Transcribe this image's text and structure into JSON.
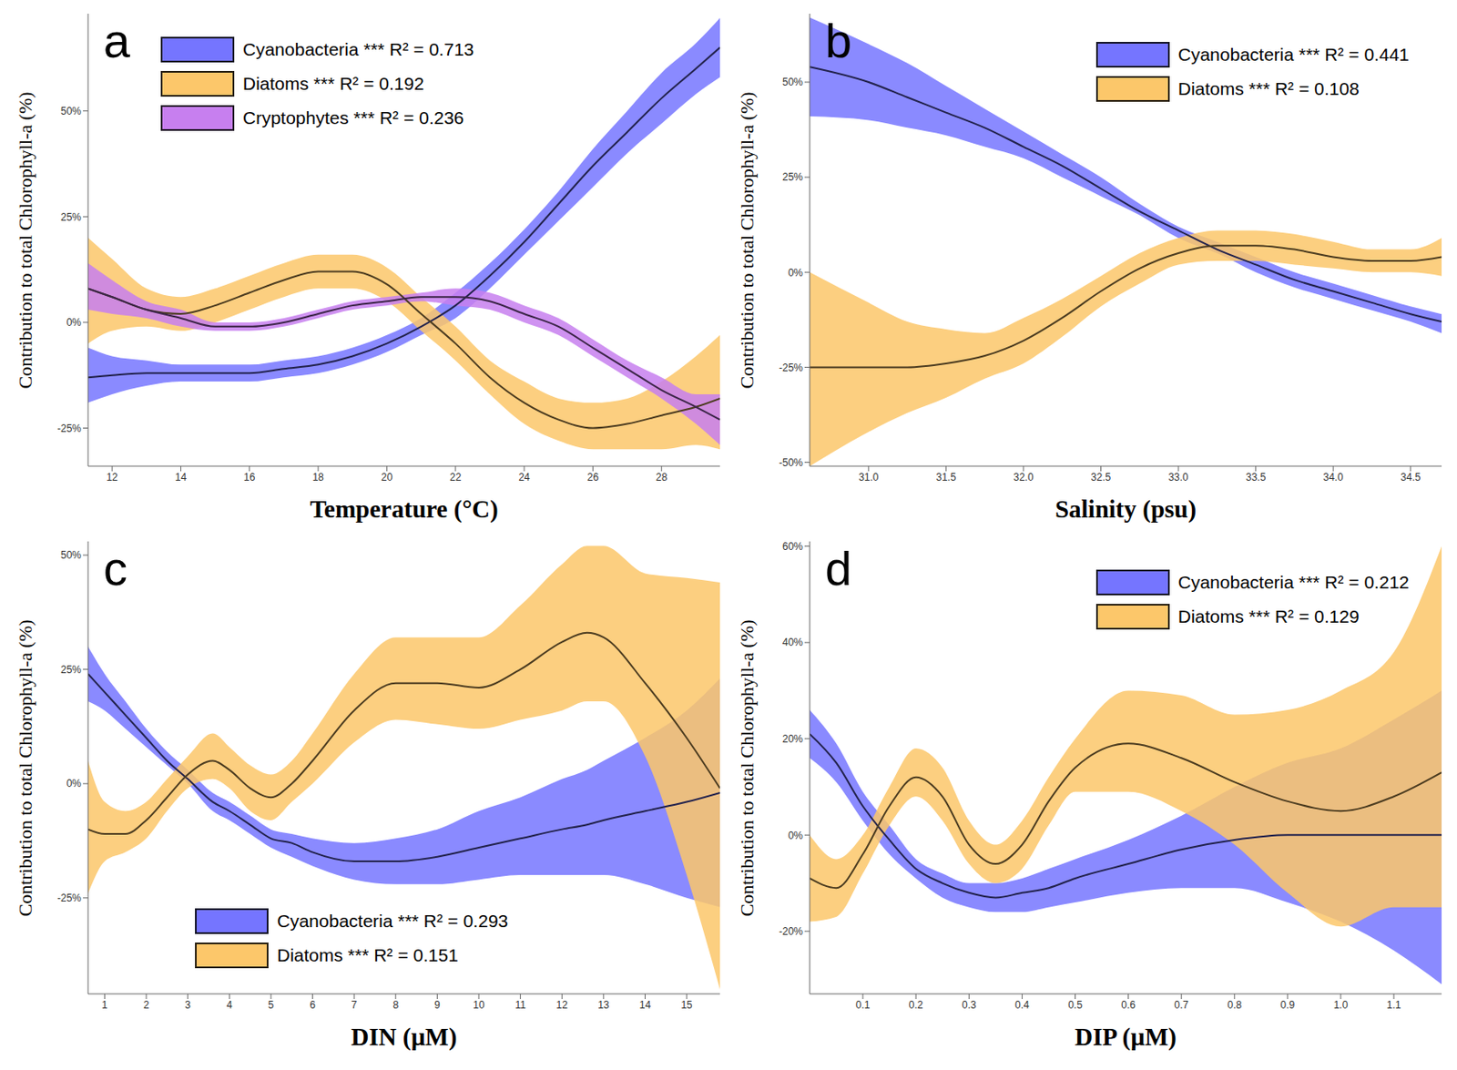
{
  "chart_data": [
    {
      "type": "line",
      "title": "a",
      "x_label": "Temperature (°C)",
      "y_label": "Contribution to total Chlorophyll-a (%)",
      "legend": "top",
      "xlim": [
        11.3,
        29.7
      ],
      "xticks": [
        12,
        14,
        16,
        18,
        20,
        22,
        24,
        26,
        28
      ],
      "ylim": [
        -34,
        73
      ],
      "yticks": [
        {
          "value": -25,
          "label": "-25%"
        },
        {
          "value": 0,
          "label": "0%"
        },
        {
          "value": 25,
          "label": "25%"
        },
        {
          "value": 50,
          "label": "50%"
        }
      ],
      "x": [
        11.3,
        12,
        13,
        14,
        15,
        16,
        17,
        18,
        19,
        20,
        21,
        22,
        23,
        24,
        25,
        26,
        27,
        28,
        29,
        29.7
      ],
      "series": [
        {
          "name": "Cyanobacteria *** R² = 0.713",
          "color": "#7575ff",
          "values": [
            -13,
            -12.5,
            -12,
            -12,
            -12,
            -12,
            -11,
            -10,
            -8,
            -5,
            -1,
            4,
            11,
            19,
            28,
            37,
            45,
            53,
            60,
            65
          ],
          "lower": [
            -19,
            -17,
            -15,
            -14,
            -14,
            -14,
            -13,
            -12,
            -10,
            -7,
            -3,
            1,
            8,
            16,
            24,
            32,
            40,
            47,
            54,
            58
          ],
          "upper": [
            -6,
            -8,
            -9,
            -10,
            -10,
            -10,
            -9,
            -8,
            -6,
            -3,
            1,
            7,
            14,
            22,
            31,
            41,
            50,
            59,
            66,
            72
          ]
        },
        {
          "name": "Diatoms *** R² = 0.192",
          "color": "#fcc76a",
          "values": [
            8,
            6,
            3,
            2,
            4,
            7,
            10,
            12,
            12,
            9,
            2,
            -5,
            -13,
            -19,
            -23,
            -25,
            -24,
            -22,
            -20,
            -18
          ],
          "lower": [
            -5,
            -2,
            -1,
            -2,
            0,
            3,
            6,
            8,
            8,
            5,
            -2,
            -9,
            -17,
            -24,
            -28,
            -30,
            -30,
            -30,
            -29,
            -30
          ],
          "upper": [
            20,
            15,
            8,
            6,
            8,
            11,
            14,
            16,
            16,
            13,
            6,
            -1,
            -9,
            -14,
            -18,
            -19,
            -18,
            -14,
            -8,
            -3
          ]
        },
        {
          "name": "Cryptophytes *** R² = 0.236",
          "color": "#c77fef",
          "values": [
            8,
            6,
            3,
            1,
            -1,
            -1,
            0,
            2,
            4,
            5,
            6,
            6,
            5,
            2,
            -1,
            -6,
            -11,
            -16,
            -20,
            -23
          ],
          "lower": [
            3,
            2,
            1,
            -1,
            -2,
            -2,
            -1,
            1,
            3,
            4,
            5,
            4,
            3,
            0,
            -3,
            -8,
            -13,
            -18,
            -24,
            -29
          ],
          "upper": [
            14,
            10,
            5,
            3,
            0,
            0,
            1,
            3,
            5,
            6,
            7,
            8,
            7,
            4,
            1,
            -4,
            -9,
            -13,
            -17,
            -17
          ]
        }
      ]
    },
    {
      "type": "line",
      "title": "b",
      "x_label": "Salinity (psu)",
      "y_label": "Contribution to total Chlorophyll-a (%)",
      "legend": "top right",
      "xlim": [
        30.62,
        34.7
      ],
      "xticks": [
        {
          "value": 31,
          "label": "31.0"
        },
        31.5,
        {
          "value": 32,
          "label": "32.0"
        },
        32.5,
        {
          "value": 33,
          "label": "33.0"
        },
        33.5,
        {
          "value": 34,
          "label": "34.0"
        },
        34.5
      ],
      "ylim": [
        -51,
        68
      ],
      "yticks": [
        {
          "value": -50,
          "label": "-50%"
        },
        {
          "value": -25,
          "label": "-25%"
        },
        {
          "value": 0,
          "label": "0%"
        },
        {
          "value": 25,
          "label": "25%"
        },
        {
          "value": 50,
          "label": "50%"
        }
      ],
      "x": [
        30.62,
        31,
        31.25,
        31.5,
        31.75,
        32,
        32.25,
        32.5,
        32.75,
        33,
        33.25,
        33.5,
        33.75,
        34,
        34.25,
        34.5,
        34.7
      ],
      "series": [
        {
          "name": "Cyanobacteria *** R² = 0.441",
          "color": "#7575ff",
          "values": [
            54,
            50,
            46,
            42,
            38,
            33,
            28,
            22,
            16,
            11,
            6,
            2,
            -2,
            -5,
            -8,
            -11,
            -13
          ],
          "lower": [
            41,
            40,
            38,
            36,
            33,
            30,
            25,
            20,
            15,
            9,
            5,
            0,
            -4,
            -7,
            -10,
            -13,
            -16
          ],
          "upper": [
            67,
            60,
            55,
            49,
            43,
            37,
            31,
            25,
            18,
            12,
            8,
            4,
            0,
            -3,
            -6,
            -9,
            -11
          ]
        },
        {
          "name": "Diatoms *** R² = 0.108",
          "color": "#fcc76a",
          "values": [
            -25,
            -25,
            -25,
            -24,
            -22,
            -18,
            -12,
            -5,
            1,
            5,
            7,
            7,
            6,
            4,
            3,
            3,
            4
          ],
          "lower": [
            -51,
            -42,
            -37,
            -33,
            -28,
            -24,
            -17,
            -9,
            -3,
            2,
            3,
            3,
            2,
            1,
            0,
            0,
            -1
          ],
          "upper": [
            0,
            -8,
            -13,
            -15,
            -16,
            -12,
            -7,
            -1,
            5,
            9,
            11,
            11,
            10,
            8,
            6,
            6,
            9
          ]
        }
      ]
    },
    {
      "type": "line",
      "title": "c",
      "x_label": "DIN (µM)",
      "y_label": "Contribution to total Chlorophyll-a (%)",
      "legend": "bottom",
      "xlim": [
        0.6,
        15.8
      ],
      "xticks": [
        1,
        2,
        3,
        4,
        5,
        6,
        7,
        8,
        9,
        10,
        11,
        12,
        13,
        14,
        15
      ],
      "ylim": [
        -46,
        53
      ],
      "yticks": [
        {
          "value": -25,
          "label": "-25%"
        },
        {
          "value": 0,
          "label": "0%"
        },
        {
          "value": 25,
          "label": "25%"
        },
        {
          "value": 50,
          "label": "50%"
        }
      ],
      "x": [
        0.6,
        1,
        1.5,
        2,
        2.5,
        3,
        3.6,
        4,
        4.5,
        5,
        5.5,
        6,
        7,
        8,
        9,
        10,
        11,
        12,
        12.6,
        13,
        14,
        15,
        15.8
      ],
      "series": [
        {
          "name": "Cyanobacteria *** R² = 0.293",
          "color": "#7575ff",
          "values": [
            24,
            20,
            15,
            10,
            5,
            1,
            -4,
            -6,
            -9,
            -12,
            -13,
            -15,
            -17,
            -17,
            -16,
            -14,
            -12,
            -10,
            -9,
            -8,
            -6,
            -4,
            -2
          ],
          "lower": [
            18,
            16,
            12,
            8,
            4,
            0,
            -6,
            -8,
            -11,
            -14,
            -16,
            -18,
            -21,
            -22,
            -22,
            -21,
            -20,
            -20,
            -20,
            -20,
            -22,
            -25,
            -27
          ],
          "upper": [
            30,
            24,
            18,
            12,
            7,
            3,
            -2,
            -4,
            -7,
            -10,
            -11,
            -12,
            -13,
            -12,
            -10,
            -6,
            -3,
            1,
            3,
            5,
            10,
            16,
            23
          ]
        },
        {
          "name": "Diatoms *** R² = 0.151",
          "color": "#fcc76a",
          "values": [
            -10,
            -11,
            -11,
            -8,
            -3,
            2,
            5,
            3,
            -1,
            -3,
            0,
            5,
            16,
            22,
            22,
            21,
            25,
            31,
            33,
            32,
            22,
            10,
            -1
          ],
          "lower": [
            -24,
            -17,
            -15,
            -12,
            -6,
            -1,
            1,
            -1,
            -6,
            -8,
            -4,
            0,
            9,
            14,
            13,
            12,
            14,
            16,
            18,
            18,
            6,
            -20,
            -45
          ],
          "upper": [
            5,
            -4,
            -6,
            -4,
            1,
            6,
            11,
            8,
            4,
            2,
            5,
            11,
            24,
            32,
            32,
            32,
            39,
            48,
            52,
            52,
            46,
            45,
            44
          ]
        }
      ]
    },
    {
      "type": "line",
      "title": "d",
      "x_label": "DIP (µM)",
      "y_label": "Contribution to total Chlorophyll-a (%)",
      "legend": "top right",
      "xlim": [
        0,
        1.19
      ],
      "xticks": [
        0.1,
        0.2,
        0.3,
        0.4,
        0.5,
        0.6,
        0.7,
        0.8,
        0.9,
        {
          "value": 1,
          "label": "1.0"
        },
        1.1
      ],
      "ylim": [
        -33,
        61
      ],
      "yticks": [
        {
          "value": -20,
          "label": "-20%"
        },
        {
          "value": 0,
          "label": "0%"
        },
        {
          "value": 20,
          "label": "20%"
        },
        {
          "value": 40,
          "label": "40%"
        },
        {
          "value": 60,
          "label": "60%"
        }
      ],
      "x": [
        0,
        0.05,
        0.1,
        0.15,
        0.2,
        0.25,
        0.3,
        0.35,
        0.4,
        0.45,
        0.5,
        0.6,
        0.7,
        0.8,
        0.9,
        1,
        1.1,
        1.19
      ],
      "series": [
        {
          "name": "Cyanobacteria *** R² = 0.212",
          "color": "#7575ff",
          "values": [
            21,
            15,
            6,
            -1,
            -7,
            -10,
            -12,
            -13,
            -12,
            -11,
            -9,
            -6,
            -3,
            -1,
            0,
            0,
            0,
            0
          ],
          "lower": [
            16,
            11,
            3,
            -4,
            -9,
            -13,
            -15,
            -16,
            -16,
            -15,
            -14,
            -12,
            -11,
            -11,
            -14,
            -18,
            -24,
            -31
          ],
          "upper": [
            26,
            19,
            9,
            2,
            -5,
            -8,
            -10,
            -10,
            -9,
            -7,
            -5,
            -1,
            4,
            10,
            15,
            18,
            24,
            30
          ]
        },
        {
          "name": "Diatoms *** R² = 0.129",
          "color": "#fcc76a",
          "values": [
            -9,
            -11,
            -4,
            6,
            12,
            8,
            -2,
            -6,
            -2,
            7,
            14,
            19,
            16,
            11,
            7,
            5,
            8,
            13
          ],
          "lower": [
            -18,
            -17,
            -8,
            2,
            8,
            3,
            -6,
            -10,
            -7,
            2,
            9,
            9,
            5,
            -2,
            -12,
            -19,
            -15,
            -15
          ],
          "upper": [
            0,
            -5,
            0,
            10,
            18,
            14,
            3,
            -2,
            3,
            12,
            20,
            30,
            29,
            25,
            26,
            30,
            38,
            60
          ]
        }
      ]
    }
  ]
}
